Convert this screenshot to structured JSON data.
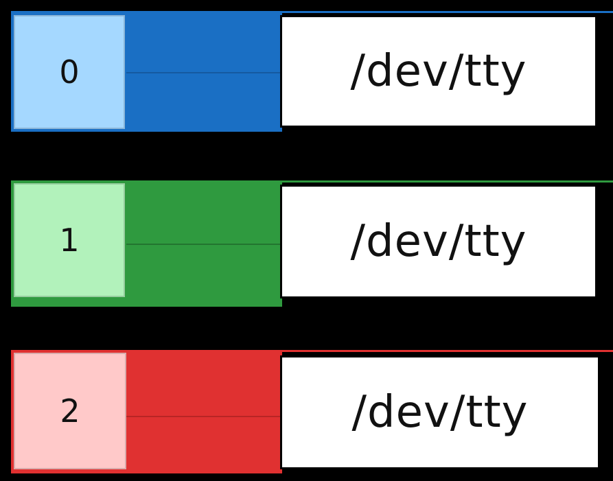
{
  "rows": [
    {
      "fd": "0",
      "target": "/dev/tty",
      "band_color": "#1a6fc4",
      "box_color": "#a5d8ff"
    },
    {
      "fd": "1",
      "target": "/dev/tty",
      "band_color": "#2f9a3f",
      "box_color": "#b2f2bb"
    },
    {
      "fd": "2",
      "target": "/dev/tty",
      "band_color": "#e03131",
      "box_color": "#ffc9c9"
    }
  ]
}
